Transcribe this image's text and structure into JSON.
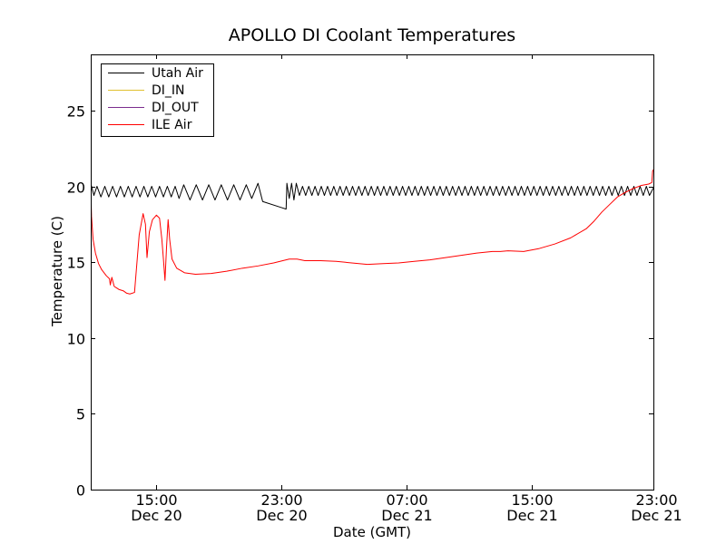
{
  "chart_data": {
    "type": "line",
    "title": "APOLLO DI Coolant Temperatures",
    "xlabel": "Date (GMT)",
    "ylabel": "Temperature (C)",
    "xlim": [
      10.8,
      46.8
    ],
    "ylim": [
      0,
      28.7
    ],
    "yticks": [
      0,
      5,
      10,
      15,
      20,
      25
    ],
    "xticks": [
      {
        "value": 15,
        "line1": "15:00",
        "line2": "Dec 20"
      },
      {
        "value": 23,
        "line1": "23:00",
        "line2": "Dec 20"
      },
      {
        "value": 31,
        "line1": "07:00",
        "line2": "Dec 21"
      },
      {
        "value": 39,
        "line1": "15:00",
        "line2": "Dec 21"
      },
      {
        "value": 47,
        "line1": "23:00",
        "line2": "Dec 21"
      }
    ],
    "legend_position": "top-left",
    "series": [
      {
        "name": "Utah Air",
        "color": "#000000",
        "points": [
          [
            10.8,
            20.2
          ],
          [
            11.0,
            19.4
          ],
          [
            11.2,
            20.0
          ],
          [
            11.45,
            19.3
          ],
          [
            11.7,
            20.0
          ],
          [
            11.95,
            19.3
          ],
          [
            12.2,
            20.0
          ],
          [
            12.45,
            19.3
          ],
          [
            12.7,
            20.0
          ],
          [
            12.95,
            19.3
          ],
          [
            13.2,
            20.0
          ],
          [
            13.45,
            19.3
          ],
          [
            13.7,
            20.0
          ],
          [
            13.95,
            19.3
          ],
          [
            14.2,
            20.0
          ],
          [
            14.45,
            19.3
          ],
          [
            14.7,
            20.0
          ],
          [
            14.95,
            19.3
          ],
          [
            15.2,
            20.0
          ],
          [
            15.45,
            19.3
          ],
          [
            15.7,
            20.0
          ],
          [
            15.95,
            19.3
          ],
          [
            16.2,
            20.0
          ],
          [
            16.45,
            19.2
          ],
          [
            16.75,
            20.1
          ],
          [
            17.15,
            19.1
          ],
          [
            17.55,
            20.1
          ],
          [
            17.95,
            19.1
          ],
          [
            18.35,
            20.1
          ],
          [
            18.75,
            19.1
          ],
          [
            19.15,
            20.1
          ],
          [
            19.55,
            19.1
          ],
          [
            19.95,
            20.1
          ],
          [
            20.35,
            19.1
          ],
          [
            20.75,
            20.1
          ],
          [
            21.1,
            19.2
          ],
          [
            21.5,
            20.2
          ],
          [
            21.8,
            19.0
          ],
          [
            23.0,
            18.6
          ],
          [
            23.3,
            18.5
          ],
          [
            23.35,
            20.2
          ],
          [
            23.5,
            19.2
          ],
          [
            23.65,
            20.2
          ],
          [
            23.8,
            19.1
          ],
          [
            23.95,
            20.2
          ],
          [
            24.15,
            19.4
          ],
          [
            24.35,
            20.0
          ],
          [
            24.55,
            19.4
          ],
          [
            24.75,
            20.0
          ],
          [
            24.95,
            19.4
          ],
          [
            25.15,
            20.0
          ],
          [
            25.35,
            19.4
          ],
          [
            25.55,
            20.0
          ],
          [
            25.75,
            19.4
          ],
          [
            25.95,
            20.0
          ],
          [
            26.15,
            19.4
          ],
          [
            26.35,
            20.0
          ],
          [
            26.55,
            19.4
          ],
          [
            26.75,
            20.0
          ],
          [
            26.95,
            19.4
          ],
          [
            27.15,
            20.0
          ],
          [
            27.35,
            19.4
          ],
          [
            27.55,
            20.0
          ],
          [
            27.75,
            19.4
          ],
          [
            27.95,
            20.0
          ],
          [
            28.15,
            19.4
          ],
          [
            28.35,
            20.0
          ],
          [
            28.55,
            19.4
          ],
          [
            28.75,
            20.0
          ],
          [
            28.95,
            19.4
          ],
          [
            29.15,
            20.0
          ],
          [
            29.35,
            19.4
          ],
          [
            29.55,
            20.0
          ],
          [
            29.75,
            19.4
          ],
          [
            29.95,
            20.0
          ],
          [
            30.15,
            19.4
          ],
          [
            30.35,
            20.0
          ],
          [
            30.55,
            19.4
          ],
          [
            30.75,
            20.0
          ],
          [
            30.95,
            19.4
          ],
          [
            31.15,
            20.0
          ],
          [
            31.35,
            19.4
          ],
          [
            31.55,
            20.0
          ],
          [
            31.75,
            19.4
          ],
          [
            31.95,
            20.0
          ],
          [
            32.15,
            19.4
          ],
          [
            32.35,
            20.0
          ],
          [
            32.55,
            19.4
          ],
          [
            32.75,
            20.0
          ],
          [
            32.95,
            19.4
          ],
          [
            33.15,
            20.0
          ],
          [
            33.35,
            19.4
          ],
          [
            33.55,
            20.0
          ],
          [
            33.75,
            19.4
          ],
          [
            33.95,
            20.0
          ],
          [
            34.15,
            19.4
          ],
          [
            34.35,
            20.0
          ],
          [
            34.55,
            19.4
          ],
          [
            34.75,
            20.0
          ],
          [
            34.95,
            19.4
          ],
          [
            35.15,
            20.0
          ],
          [
            35.35,
            19.4
          ],
          [
            35.55,
            20.0
          ],
          [
            35.75,
            19.4
          ],
          [
            35.95,
            20.0
          ],
          [
            36.15,
            19.4
          ],
          [
            36.35,
            20.0
          ],
          [
            36.55,
            19.4
          ],
          [
            36.75,
            20.0
          ],
          [
            36.95,
            19.4
          ],
          [
            37.15,
            20.0
          ],
          [
            37.35,
            19.4
          ],
          [
            37.55,
            20.0
          ],
          [
            37.75,
            19.4
          ],
          [
            37.95,
            20.0
          ],
          [
            38.15,
            19.4
          ],
          [
            38.35,
            20.0
          ],
          [
            38.55,
            19.4
          ],
          [
            38.75,
            20.0
          ],
          [
            38.95,
            19.4
          ],
          [
            39.15,
            20.0
          ],
          [
            39.35,
            19.4
          ],
          [
            39.55,
            20.0
          ],
          [
            39.75,
            19.4
          ],
          [
            39.95,
            20.0
          ],
          [
            40.15,
            19.4
          ],
          [
            40.35,
            20.0
          ],
          [
            40.55,
            19.4
          ],
          [
            40.75,
            20.0
          ],
          [
            40.95,
            19.4
          ],
          [
            41.15,
            20.0
          ],
          [
            41.35,
            19.4
          ],
          [
            41.55,
            20.0
          ],
          [
            41.75,
            19.4
          ],
          [
            41.95,
            20.0
          ],
          [
            42.15,
            19.4
          ],
          [
            42.35,
            20.0
          ],
          [
            42.55,
            19.4
          ],
          [
            42.75,
            20.0
          ],
          [
            42.95,
            19.4
          ],
          [
            43.15,
            20.0
          ],
          [
            43.35,
            19.4
          ],
          [
            43.55,
            20.0
          ],
          [
            43.75,
            19.4
          ],
          [
            43.95,
            20.0
          ],
          [
            44.15,
            19.4
          ],
          [
            44.35,
            20.0
          ],
          [
            44.55,
            19.4
          ],
          [
            44.75,
            20.0
          ],
          [
            44.95,
            19.4
          ],
          [
            45.15,
            20.0
          ],
          [
            45.35,
            19.4
          ],
          [
            45.55,
            20.0
          ],
          [
            45.75,
            19.4
          ],
          [
            45.95,
            20.0
          ],
          [
            46.15,
            19.4
          ],
          [
            46.35,
            20.0
          ],
          [
            46.55,
            19.4
          ],
          [
            46.8,
            19.9
          ]
        ]
      },
      {
        "name": "DI_IN",
        "color": "#e0c030",
        "points": []
      },
      {
        "name": "DI_OUT",
        "color": "#7b2d8e",
        "points": []
      },
      {
        "name": "ILE Air",
        "color": "#ff0000",
        "points": [
          [
            10.8,
            20.0
          ],
          [
            10.85,
            18.0
          ],
          [
            10.95,
            16.5
          ],
          [
            11.1,
            15.6
          ],
          [
            11.3,
            14.9
          ],
          [
            11.5,
            14.5
          ],
          [
            11.8,
            14.1
          ],
          [
            12.0,
            13.9
          ],
          [
            12.05,
            13.5
          ],
          [
            12.15,
            14.0
          ],
          [
            12.3,
            13.4
          ],
          [
            12.6,
            13.2
          ],
          [
            12.9,
            13.1
          ],
          [
            13.1,
            12.95
          ],
          [
            13.3,
            12.9
          ],
          [
            13.6,
            13.0
          ],
          [
            13.9,
            16.8
          ],
          [
            14.15,
            18.2
          ],
          [
            14.3,
            17.5
          ],
          [
            14.4,
            15.3
          ],
          [
            14.55,
            17.0
          ],
          [
            14.75,
            17.8
          ],
          [
            15.0,
            18.1
          ],
          [
            15.2,
            17.9
          ],
          [
            15.35,
            16.5
          ],
          [
            15.45,
            15.2
          ],
          [
            15.55,
            13.8
          ],
          [
            15.65,
            16.0
          ],
          [
            15.75,
            17.8
          ],
          [
            15.85,
            16.5
          ],
          [
            16.0,
            15.2
          ],
          [
            16.3,
            14.6
          ],
          [
            16.8,
            14.3
          ],
          [
            17.5,
            14.2
          ],
          [
            18.5,
            14.25
          ],
          [
            19.5,
            14.4
          ],
          [
            20.5,
            14.6
          ],
          [
            21.5,
            14.75
          ],
          [
            22.5,
            14.95
          ],
          [
            23.5,
            15.2
          ],
          [
            24.0,
            15.2
          ],
          [
            24.5,
            15.1
          ],
          [
            25.5,
            15.1
          ],
          [
            26.5,
            15.05
          ],
          [
            27.5,
            14.95
          ],
          [
            28.5,
            14.85
          ],
          [
            29.5,
            14.9
          ],
          [
            30.5,
            14.95
          ],
          [
            31.5,
            15.05
          ],
          [
            32.5,
            15.15
          ],
          [
            33.5,
            15.3
          ],
          [
            34.5,
            15.45
          ],
          [
            35.5,
            15.6
          ],
          [
            36.5,
            15.7
          ],
          [
            37.0,
            15.7
          ],
          [
            37.5,
            15.75
          ],
          [
            38.5,
            15.7
          ],
          [
            39.5,
            15.9
          ],
          [
            40.5,
            16.2
          ],
          [
            41.5,
            16.6
          ],
          [
            42.5,
            17.2
          ],
          [
            43.0,
            17.7
          ],
          [
            43.5,
            18.3
          ],
          [
            44.0,
            18.8
          ],
          [
            44.5,
            19.3
          ],
          [
            45.0,
            19.6
          ],
          [
            45.5,
            19.85
          ],
          [
            46.0,
            20.05
          ],
          [
            46.5,
            20.15
          ],
          [
            46.7,
            20.25
          ],
          [
            46.75,
            21.0
          ],
          [
            46.8,
            21.1
          ]
        ]
      }
    ]
  }
}
